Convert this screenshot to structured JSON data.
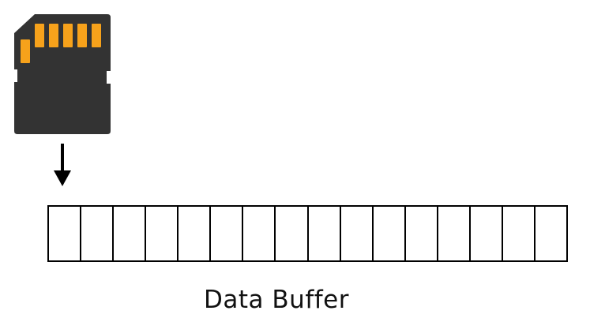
{
  "sd_card": {
    "icon": "sd-card-icon",
    "body_color": "#333333",
    "contact_color": "#F7A21B",
    "contact_count": 6
  },
  "arrow": {
    "icon": "arrow-down-icon",
    "color": "#000000"
  },
  "buffer": {
    "cell_count": 16,
    "border_color": "#000000"
  },
  "caption": {
    "text": "Data Buffer"
  }
}
